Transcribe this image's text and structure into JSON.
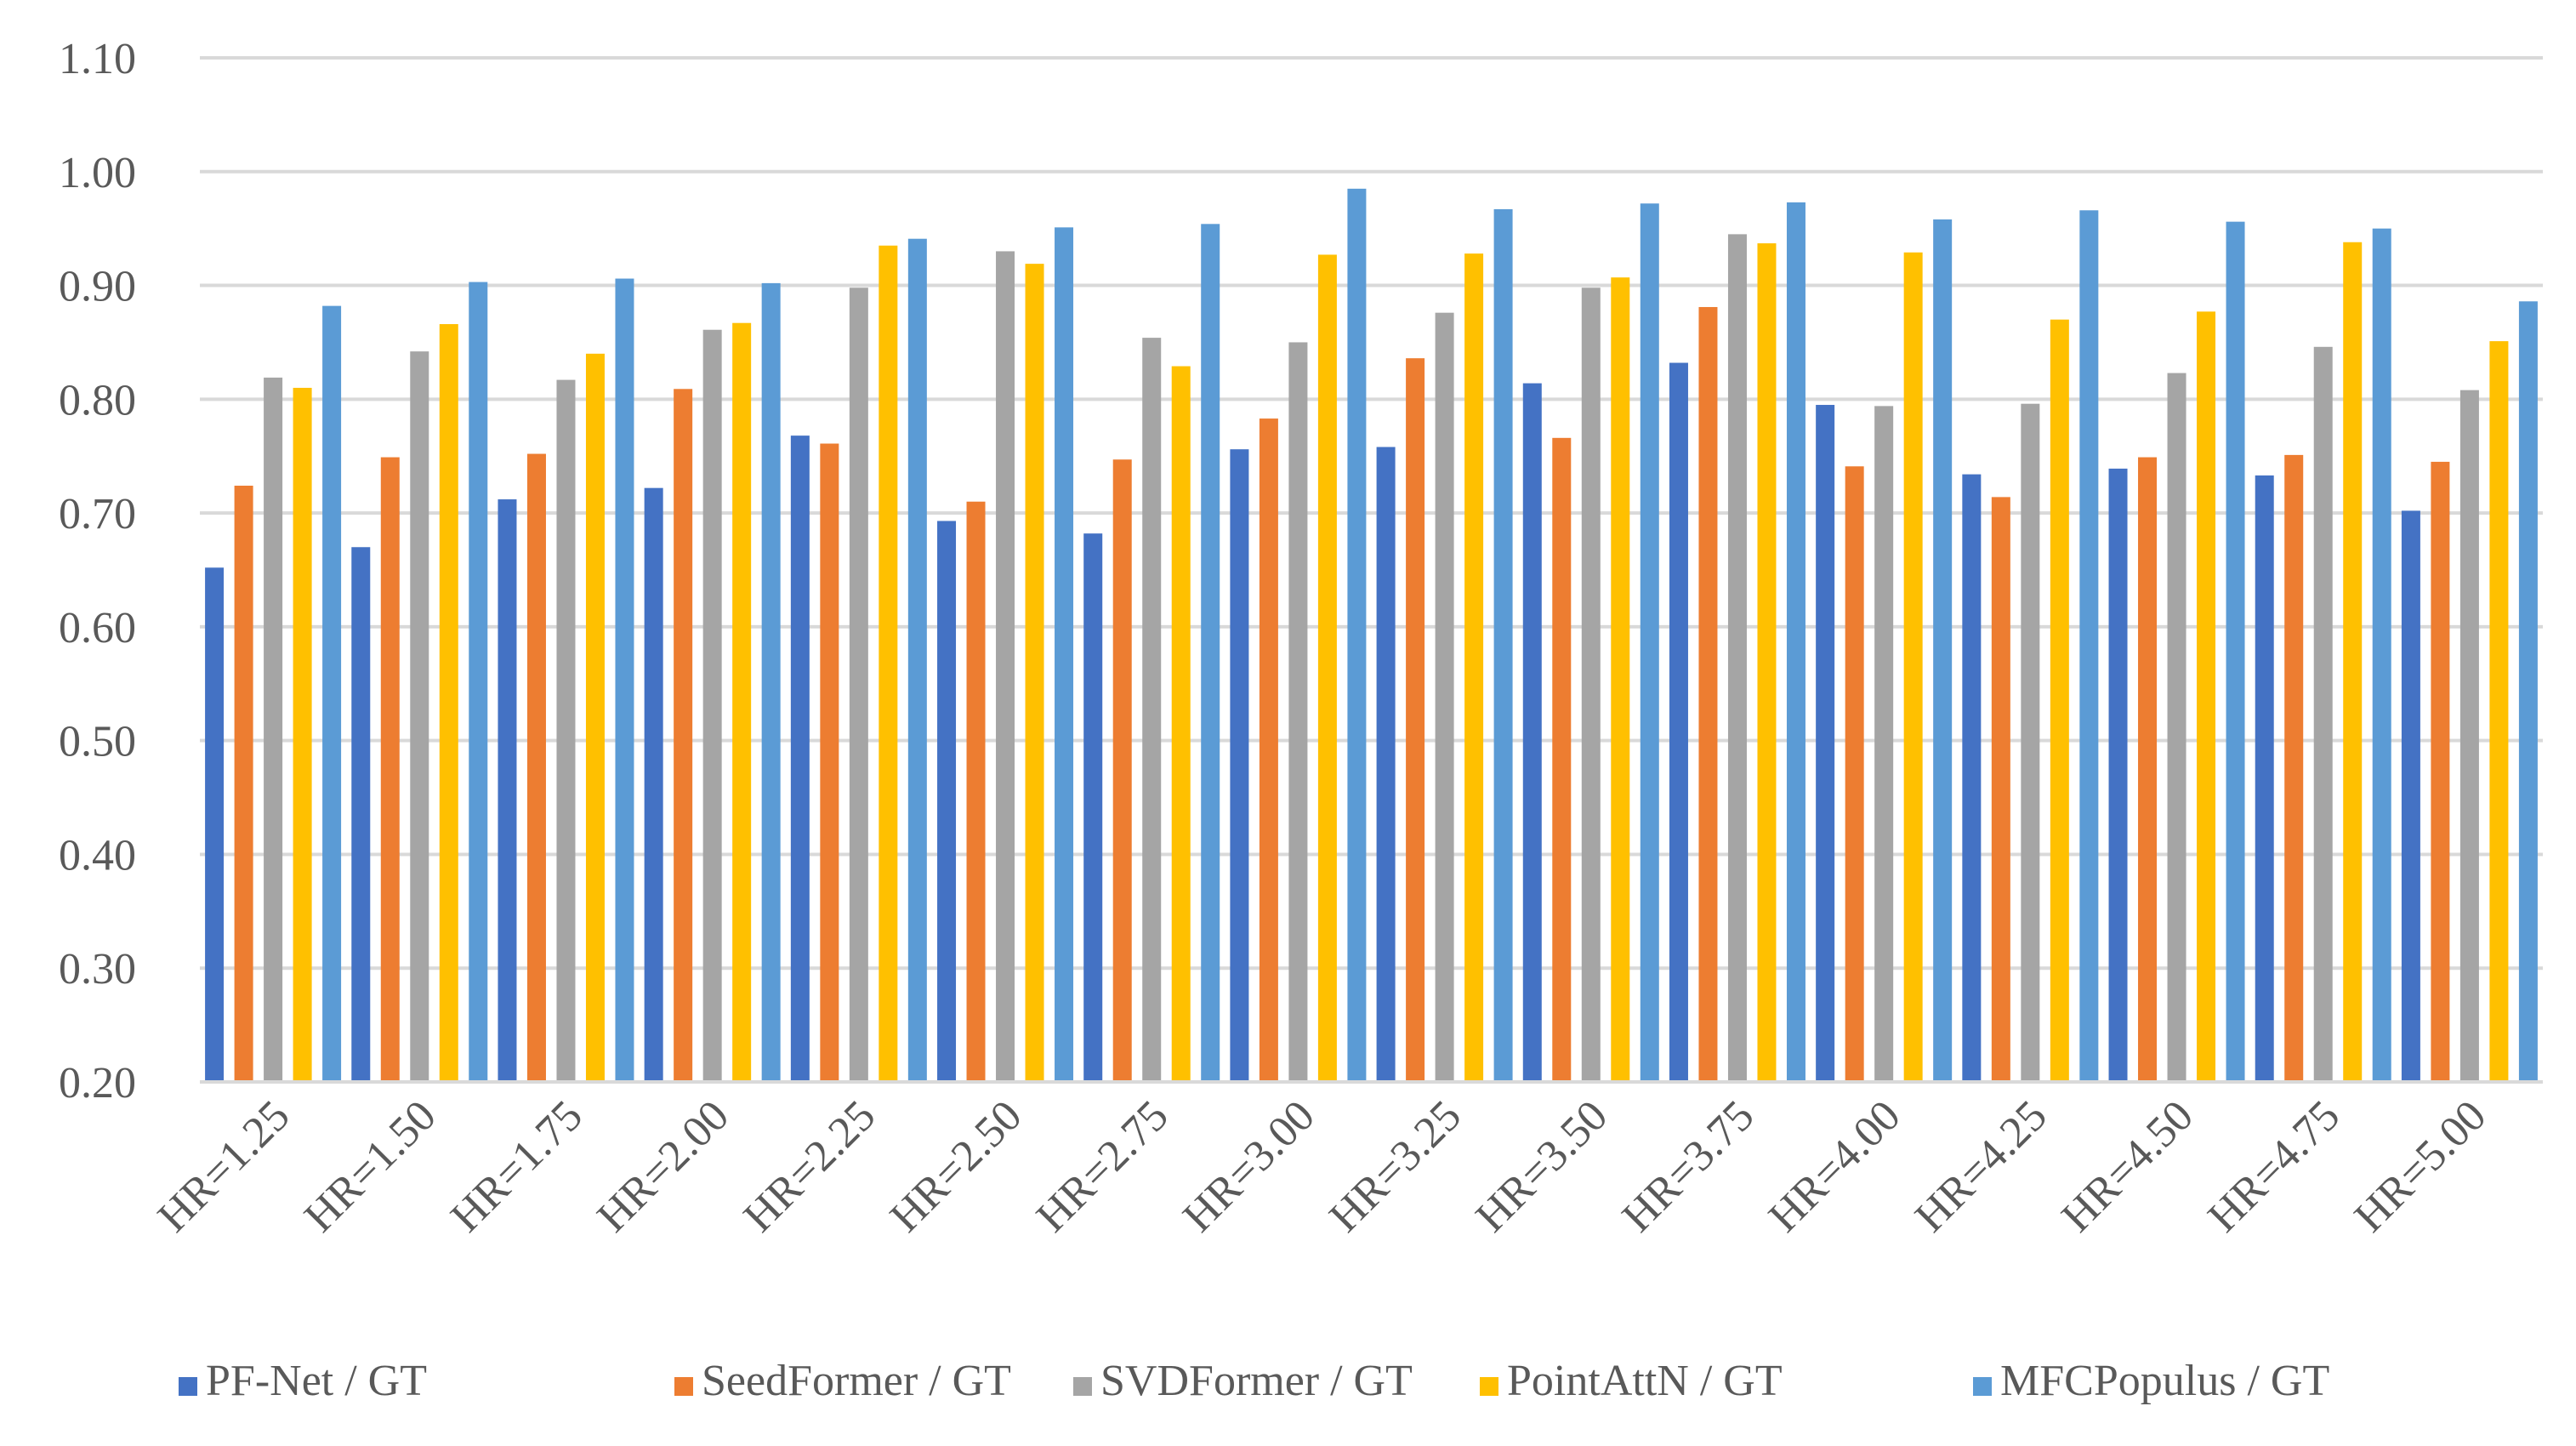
{
  "chart_data": {
    "type": "bar",
    "title": "",
    "xlabel": "",
    "ylabel": "",
    "ylim": [
      0.2,
      1.1
    ],
    "yticks": [
      "0.20",
      "0.30",
      "0.40",
      "0.50",
      "0.60",
      "0.70",
      "0.80",
      "0.90",
      "1.00",
      "1.10"
    ],
    "grid": true,
    "legend_position": "bottom",
    "categories": [
      "HR=1.25",
      "HR=1.50",
      "HR=1.75",
      "HR=2.00",
      "HR=2.25",
      "HR=2.50",
      "HR=2.75",
      "HR=3.00",
      "HR=3.25",
      "HR=3.50",
      "HR=3.75",
      "HR=4.00",
      "HR=4.25",
      "HR=4.50",
      "HR=4.75",
      "HR=5.00"
    ],
    "series": [
      {
        "name": "PF-Net / GT",
        "color": "#4472C4",
        "values": [
          0.652,
          0.67,
          0.712,
          0.722,
          0.768,
          0.693,
          0.682,
          0.756,
          0.758,
          0.814,
          0.832,
          0.795,
          0.734,
          0.739,
          0.733,
          0.702
        ]
      },
      {
        "name": "SeedFormer / GT",
        "color": "#ED7D31",
        "values": [
          0.724,
          0.749,
          0.752,
          0.809,
          0.761,
          0.71,
          0.747,
          0.783,
          0.836,
          0.766,
          0.881,
          0.741,
          0.714,
          0.749,
          0.751,
          0.745
        ]
      },
      {
        "name": "SVDFormer / GT",
        "color": "#A5A5A5",
        "values": [
          0.819,
          0.842,
          0.817,
          0.861,
          0.898,
          0.93,
          0.854,
          0.85,
          0.876,
          0.898,
          0.945,
          0.794,
          0.796,
          0.823,
          0.846,
          0.808
        ]
      },
      {
        "name": "PointAttN / GT",
        "color": "#FFC000",
        "values": [
          0.81,
          0.866,
          0.84,
          0.867,
          0.935,
          0.919,
          0.829,
          0.927,
          0.928,
          0.907,
          0.937,
          0.929,
          0.87,
          0.877,
          0.938,
          0.851
        ]
      },
      {
        "name": "MFCPopulus / GT",
        "color": "#5B9BD5",
        "values": [
          0.882,
          0.903,
          0.906,
          0.902,
          0.941,
          0.951,
          0.954,
          0.985,
          0.967,
          0.972,
          0.973,
          0.958,
          0.966,
          0.956,
          0.95,
          0.886
        ]
      }
    ]
  }
}
